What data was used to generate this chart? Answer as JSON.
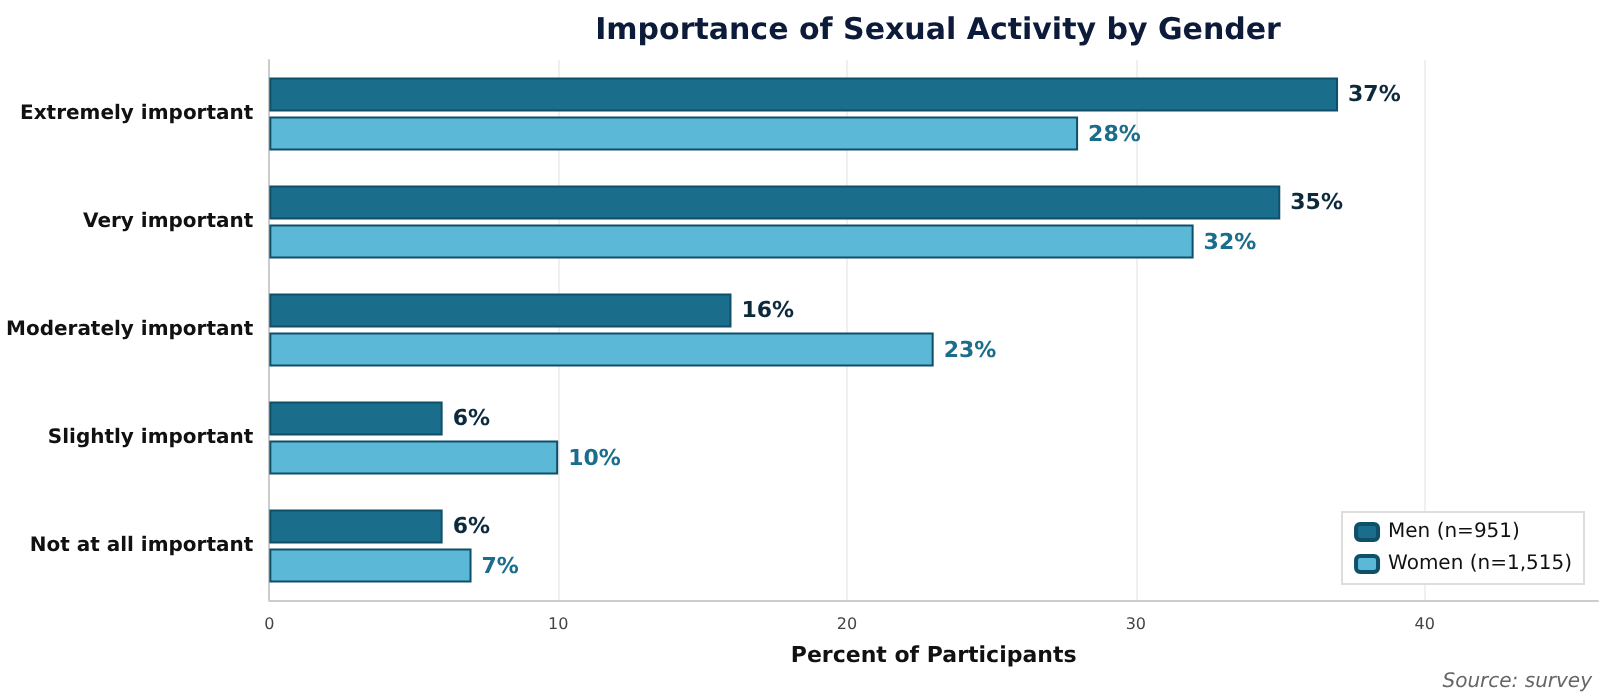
{
  "chart_data": {
    "type": "bar",
    "orientation": "horizontal",
    "title": "Importance of Sexual Activity by Gender",
    "xlabel": "Percent of Participants",
    "annotations": [
      "Source: survey"
    ],
    "categories": [
      "Extremely important",
      "Very important",
      "Moderately important",
      "Slightly important",
      "Not at all important"
    ],
    "series": [
      {
        "name": "Men (n=951)",
        "color": "#1b6d8c",
        "values": [
          37,
          35,
          16,
          6,
          6
        ],
        "value_labels": [
          "37%",
          "35%",
          "16%",
          "6%",
          "6%"
        ]
      },
      {
        "name": "Women (n=1,515)",
        "color": "#5bb8d6",
        "values": [
          28,
          32,
          23,
          10,
          7
        ],
        "value_labels": [
          "28%",
          "32%",
          "23%",
          "10%",
          "7%"
        ]
      }
    ],
    "xlim": [
      0,
      46
    ],
    "xticks": [
      0,
      10,
      20,
      30,
      40
    ],
    "grid": "x",
    "legend": "bottom right"
  }
}
